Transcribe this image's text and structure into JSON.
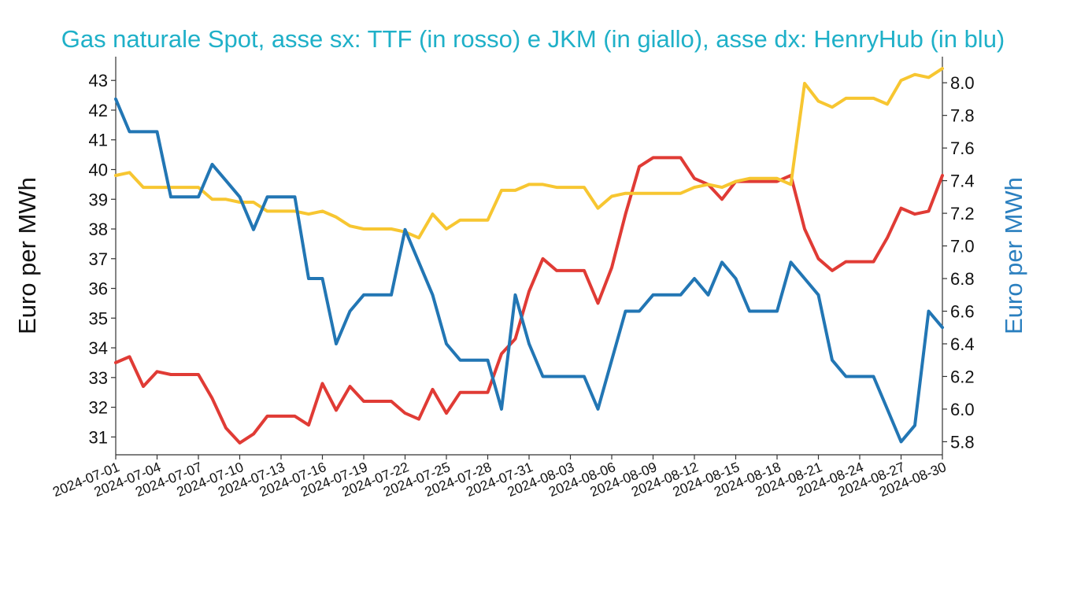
{
  "chart_data": {
    "type": "line",
    "title": "Gas naturale Spot, asse sx: TTF (in rosso) e JKM (in giallo), asse dx: HenryHub (in blu)",
    "ylabel_left": "Euro per MWh",
    "ylabel_right": "Euro per MWh",
    "ylim_left": [
      30.4,
      43.8
    ],
    "ylim_right": [
      5.72,
      8.16
    ],
    "yticks_left": [
      31,
      32,
      33,
      34,
      35,
      36,
      37,
      38,
      39,
      40,
      41,
      42,
      43
    ],
    "yticks_right": [
      "5.8",
      "6.0",
      "6.2",
      "6.4",
      "6.6",
      "6.8",
      "7.0",
      "7.2",
      "7.4",
      "7.6",
      "7.8",
      "8.0"
    ],
    "x_tick_labels": [
      "2024-07-01",
      "2024-07-04",
      "2024-07-07",
      "2024-07-10",
      "2024-07-13",
      "2024-07-16",
      "2024-07-19",
      "2024-07-22",
      "2024-07-25",
      "2024-07-28",
      "2024-07-31",
      "2024-08-03",
      "2024-08-06",
      "2024-08-09",
      "2024-08-12",
      "2024-08-15",
      "2024-08-18",
      "2024-08-21",
      "2024-08-24",
      "2024-08-27",
      "2024-08-30"
    ],
    "x_range": [
      "2024-07-01",
      "2024-08-30"
    ],
    "grid": false,
    "colors": {
      "ttf": "#e03b35",
      "jkm": "#f7c631",
      "henryhub": "#2276b4",
      "title": "#1fb0c8",
      "right_axis_label": "#2a7fbf"
    },
    "series": [
      {
        "key": "ttf",
        "axis": "left",
        "points": [
          [
            "2024-07-01",
            33.5
          ],
          [
            "2024-07-02",
            33.7
          ],
          [
            "2024-07-03",
            32.7
          ],
          [
            "2024-07-04",
            33.2
          ],
          [
            "2024-07-05",
            33.1
          ],
          [
            "2024-07-06",
            33.1
          ],
          [
            "2024-07-07",
            33.1
          ],
          [
            "2024-07-08",
            32.3
          ],
          [
            "2024-07-09",
            31.3
          ],
          [
            "2024-07-10",
            30.8
          ],
          [
            "2024-07-11",
            31.1
          ],
          [
            "2024-07-12",
            31.7
          ],
          [
            "2024-07-13",
            31.7
          ],
          [
            "2024-07-14",
            31.7
          ],
          [
            "2024-07-15",
            31.4
          ],
          [
            "2024-07-16",
            32.8
          ],
          [
            "2024-07-17",
            31.9
          ],
          [
            "2024-07-18",
            32.7
          ],
          [
            "2024-07-19",
            32.2
          ],
          [
            "2024-07-20",
            32.2
          ],
          [
            "2024-07-21",
            32.2
          ],
          [
            "2024-07-22",
            31.8
          ],
          [
            "2024-07-23",
            31.6
          ],
          [
            "2024-07-24",
            32.6
          ],
          [
            "2024-07-25",
            31.8
          ],
          [
            "2024-07-26",
            32.5
          ],
          [
            "2024-07-27",
            32.5
          ],
          [
            "2024-07-28",
            32.5
          ],
          [
            "2024-07-29",
            33.8
          ],
          [
            "2024-07-30",
            34.3
          ],
          [
            "2024-07-31",
            35.9
          ],
          [
            "2024-08-01",
            37.0
          ],
          [
            "2024-08-02",
            36.6
          ],
          [
            "2024-08-03",
            36.6
          ],
          [
            "2024-08-04",
            36.6
          ],
          [
            "2024-08-05",
            35.5
          ],
          [
            "2024-08-06",
            36.7
          ],
          [
            "2024-08-07",
            38.5
          ],
          [
            "2024-08-08",
            40.1
          ],
          [
            "2024-08-09",
            40.4
          ],
          [
            "2024-08-10",
            40.4
          ],
          [
            "2024-08-11",
            40.4
          ],
          [
            "2024-08-12",
            39.7
          ],
          [
            "2024-08-13",
            39.5
          ],
          [
            "2024-08-14",
            39.0
          ],
          [
            "2024-08-15",
            39.6
          ],
          [
            "2024-08-16",
            39.6
          ],
          [
            "2024-08-17",
            39.6
          ],
          [
            "2024-08-18",
            39.6
          ],
          [
            "2024-08-19",
            39.8
          ],
          [
            "2024-08-20",
            38.0
          ],
          [
            "2024-08-21",
            37.0
          ],
          [
            "2024-08-22",
            36.6
          ],
          [
            "2024-08-23",
            36.9
          ],
          [
            "2024-08-24",
            36.9
          ],
          [
            "2024-08-25",
            36.9
          ],
          [
            "2024-08-26",
            37.7
          ],
          [
            "2024-08-27",
            38.7
          ],
          [
            "2024-08-28",
            38.5
          ],
          [
            "2024-08-29",
            38.6
          ],
          [
            "2024-08-30",
            39.8
          ]
        ]
      },
      {
        "key": "jkm",
        "axis": "left",
        "points": [
          [
            "2024-07-01",
            39.8
          ],
          [
            "2024-07-02",
            39.9
          ],
          [
            "2024-07-03",
            39.4
          ],
          [
            "2024-07-04",
            39.4
          ],
          [
            "2024-07-05",
            39.4
          ],
          [
            "2024-07-06",
            39.4
          ],
          [
            "2024-07-07",
            39.4
          ],
          [
            "2024-07-08",
            39.0
          ],
          [
            "2024-07-09",
            39.0
          ],
          [
            "2024-07-10",
            38.9
          ],
          [
            "2024-07-11",
            38.9
          ],
          [
            "2024-07-12",
            38.6
          ],
          [
            "2024-07-13",
            38.6
          ],
          [
            "2024-07-14",
            38.6
          ],
          [
            "2024-07-15",
            38.5
          ],
          [
            "2024-07-16",
            38.6
          ],
          [
            "2024-07-17",
            38.4
          ],
          [
            "2024-07-18",
            38.1
          ],
          [
            "2024-07-19",
            38.0
          ],
          [
            "2024-07-20",
            38.0
          ],
          [
            "2024-07-21",
            38.0
          ],
          [
            "2024-07-22",
            37.9
          ],
          [
            "2024-07-23",
            37.7
          ],
          [
            "2024-07-24",
            38.5
          ],
          [
            "2024-07-25",
            38.0
          ],
          [
            "2024-07-26",
            38.3
          ],
          [
            "2024-07-27",
            38.3
          ],
          [
            "2024-07-28",
            38.3
          ],
          [
            "2024-07-29",
            39.3
          ],
          [
            "2024-07-30",
            39.3
          ],
          [
            "2024-07-31",
            39.5
          ],
          [
            "2024-08-01",
            39.5
          ],
          [
            "2024-08-02",
            39.4
          ],
          [
            "2024-08-03",
            39.4
          ],
          [
            "2024-08-04",
            39.4
          ],
          [
            "2024-08-05",
            38.7
          ],
          [
            "2024-08-06",
            39.1
          ],
          [
            "2024-08-07",
            39.2
          ],
          [
            "2024-08-08",
            39.2
          ],
          [
            "2024-08-09",
            39.2
          ],
          [
            "2024-08-10",
            39.2
          ],
          [
            "2024-08-11",
            39.2
          ],
          [
            "2024-08-12",
            39.4
          ],
          [
            "2024-08-13",
            39.5
          ],
          [
            "2024-08-14",
            39.4
          ],
          [
            "2024-08-15",
            39.6
          ],
          [
            "2024-08-16",
            39.7
          ],
          [
            "2024-08-17",
            39.7
          ],
          [
            "2024-08-18",
            39.7
          ],
          [
            "2024-08-19",
            39.5
          ],
          [
            "2024-08-20",
            42.9
          ],
          [
            "2024-08-21",
            42.3
          ],
          [
            "2024-08-22",
            42.1
          ],
          [
            "2024-08-23",
            42.4
          ],
          [
            "2024-08-24",
            42.4
          ],
          [
            "2024-08-25",
            42.4
          ],
          [
            "2024-08-26",
            42.2
          ],
          [
            "2024-08-27",
            43.0
          ],
          [
            "2024-08-28",
            43.2
          ],
          [
            "2024-08-29",
            43.1
          ],
          [
            "2024-08-30",
            43.4
          ]
        ]
      },
      {
        "key": "henryhub",
        "axis": "right",
        "points": [
          [
            "2024-07-01",
            7.9
          ],
          [
            "2024-07-02",
            7.7
          ],
          [
            "2024-07-03",
            7.7
          ],
          [
            "2024-07-04",
            7.7
          ],
          [
            "2024-07-05",
            7.3
          ],
          [
            "2024-07-06",
            7.3
          ],
          [
            "2024-07-07",
            7.3
          ],
          [
            "2024-07-08",
            7.5
          ],
          [
            "2024-07-09",
            7.4
          ],
          [
            "2024-07-10",
            7.3
          ],
          [
            "2024-07-11",
            7.1
          ],
          [
            "2024-07-12",
            7.3
          ],
          [
            "2024-07-13",
            7.3
          ],
          [
            "2024-07-14",
            7.3
          ],
          [
            "2024-07-15",
            6.8
          ],
          [
            "2024-07-16",
            6.8
          ],
          [
            "2024-07-17",
            6.4
          ],
          [
            "2024-07-18",
            6.6
          ],
          [
            "2024-07-19",
            6.7
          ],
          [
            "2024-07-20",
            6.7
          ],
          [
            "2024-07-21",
            6.7
          ],
          [
            "2024-07-22",
            7.1
          ],
          [
            "2024-07-23",
            6.9
          ],
          [
            "2024-07-24",
            6.7
          ],
          [
            "2024-07-25",
            6.4
          ],
          [
            "2024-07-26",
            6.3
          ],
          [
            "2024-07-27",
            6.3
          ],
          [
            "2024-07-28",
            6.3
          ],
          [
            "2024-07-29",
            6.0
          ],
          [
            "2024-07-30",
            6.7
          ],
          [
            "2024-07-31",
            6.4
          ],
          [
            "2024-08-01",
            6.2
          ],
          [
            "2024-08-02",
            6.2
          ],
          [
            "2024-08-03",
            6.2
          ],
          [
            "2024-08-04",
            6.2
          ],
          [
            "2024-08-05",
            6.0
          ],
          [
            "2024-08-06",
            6.3
          ],
          [
            "2024-08-07",
            6.6
          ],
          [
            "2024-08-08",
            6.6
          ],
          [
            "2024-08-09",
            6.7
          ],
          [
            "2024-08-10",
            6.7
          ],
          [
            "2024-08-11",
            6.7
          ],
          [
            "2024-08-12",
            6.8
          ],
          [
            "2024-08-13",
            6.7
          ],
          [
            "2024-08-14",
            6.9
          ],
          [
            "2024-08-15",
            6.8
          ],
          [
            "2024-08-16",
            6.6
          ],
          [
            "2024-08-17",
            6.6
          ],
          [
            "2024-08-18",
            6.6
          ],
          [
            "2024-08-19",
            6.9
          ],
          [
            "2024-08-20",
            6.8
          ],
          [
            "2024-08-21",
            6.7
          ],
          [
            "2024-08-22",
            6.3
          ],
          [
            "2024-08-23",
            6.2
          ],
          [
            "2024-08-24",
            6.2
          ],
          [
            "2024-08-25",
            6.2
          ],
          [
            "2024-08-26",
            6.0
          ],
          [
            "2024-08-27",
            5.8
          ],
          [
            "2024-08-28",
            5.9
          ],
          [
            "2024-08-29",
            6.6
          ],
          [
            "2024-08-30",
            6.5
          ]
        ]
      }
    ]
  }
}
